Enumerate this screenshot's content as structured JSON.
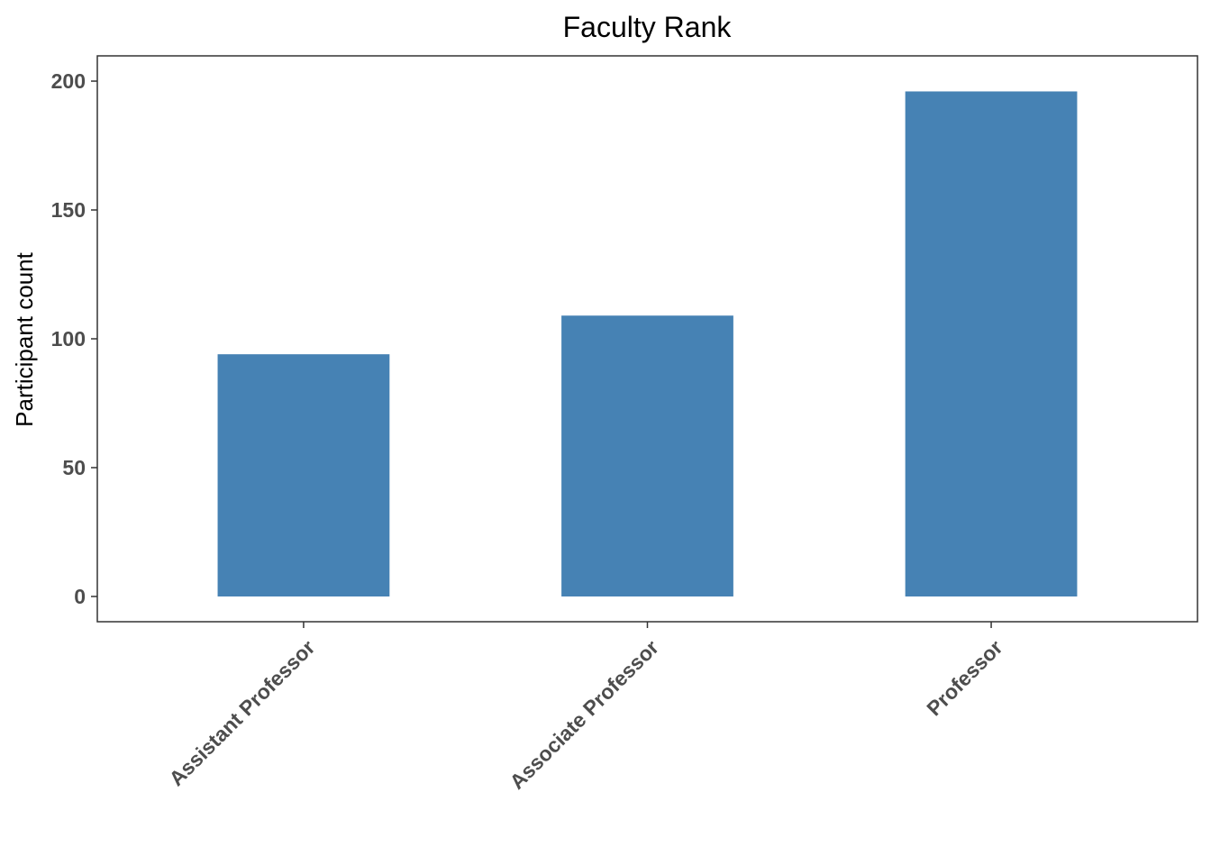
{
  "chart_data": {
    "type": "bar",
    "title": "Faculty Rank",
    "xlabel": "",
    "ylabel": "Participant count",
    "categories": [
      "Assistant Professor",
      "Associate Professor",
      "Professor"
    ],
    "values": [
      94,
      109,
      196
    ],
    "ylim": [
      -9.8,
      209.8
    ],
    "yticks": [
      0,
      50,
      100,
      150,
      200
    ],
    "grid": false,
    "legend": "none",
    "bar_color": "#4682B4",
    "axis_color": "#333333",
    "tick_label_color": "#4D4D4D"
  }
}
